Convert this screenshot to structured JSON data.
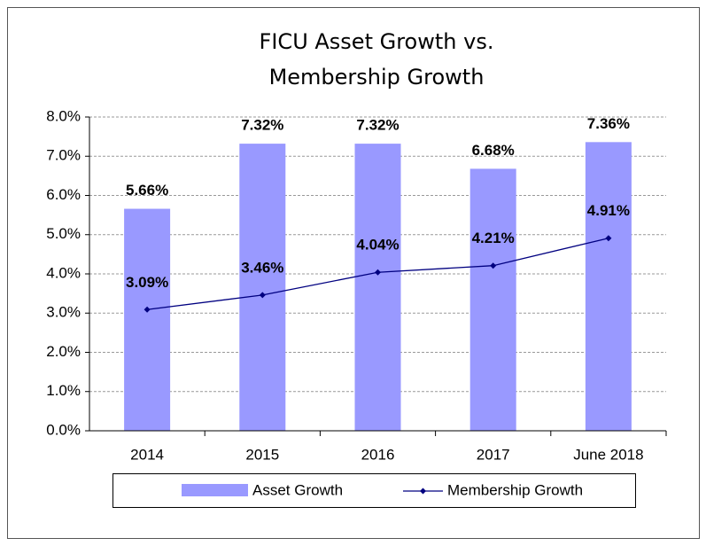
{
  "chart_data": {
    "type": "bar_line",
    "title": [
      "FICU Asset Growth vs.",
      "Membership Growth"
    ],
    "categories": [
      "2014",
      "2015",
      "2016",
      "2017",
      "June 2018"
    ],
    "series": [
      {
        "name": "Asset Growth",
        "type": "bar",
        "color": "#9999ff",
        "values": [
          5.66,
          7.32,
          7.32,
          6.68,
          7.36
        ],
        "value_labels": [
          "5.66%",
          "7.32%",
          "7.32%",
          "6.68%",
          "7.36%"
        ]
      },
      {
        "name": "Membership Growth",
        "type": "line",
        "color": "#000080",
        "values": [
          3.09,
          3.46,
          4.04,
          4.21,
          4.91
        ],
        "value_labels": [
          "3.09%",
          "3.46%",
          "4.04%",
          "4.21%",
          "4.91%"
        ]
      }
    ],
    "ylim": [
      0,
      8
    ],
    "yticks": [
      {
        "value": 0,
        "label": "0.0%"
      },
      {
        "value": 1,
        "label": "1.0%"
      },
      {
        "value": 2,
        "label": "2.0%"
      },
      {
        "value": 3,
        "label": "3.0%"
      },
      {
        "value": 4,
        "label": "4.0%"
      },
      {
        "value": 5,
        "label": "5.0%"
      },
      {
        "value": 6,
        "label": "6.0%"
      },
      {
        "value": 7,
        "label": "7.0%"
      },
      {
        "value": 8,
        "label": "8.0%"
      }
    ],
    "grid": true,
    "legend": "bottom"
  }
}
